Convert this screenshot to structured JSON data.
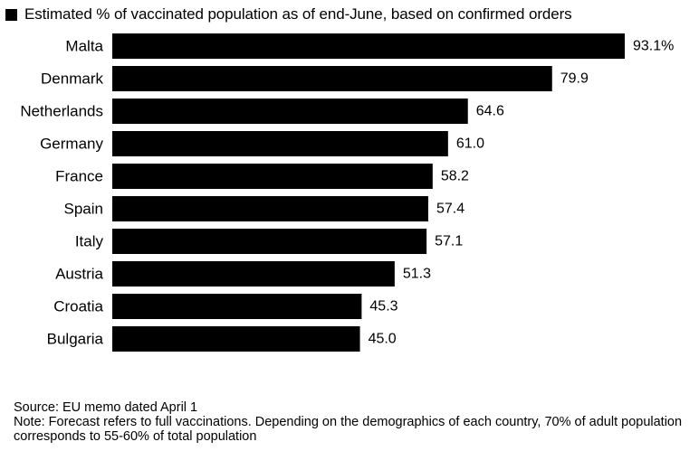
{
  "chart_data": {
    "type": "bar",
    "orientation": "horizontal",
    "legend": {
      "label": "Estimated % of vaccinated population as of end-June, based on confirmed orders",
      "color": "#000000"
    },
    "categories": [
      "Malta",
      "Denmark",
      "Netherlands",
      "Germany",
      "France",
      "Spain",
      "Italy",
      "Austria",
      "Croatia",
      "Bulgaria"
    ],
    "values": [
      93.1,
      79.9,
      64.6,
      61.0,
      58.2,
      57.4,
      57.1,
      51.3,
      45.3,
      45.0
    ],
    "value_labels": [
      "93.1%",
      "79.9",
      "64.6",
      "61.0",
      "58.2",
      "57.4",
      "57.1",
      "51.3",
      "45.3",
      "45.0"
    ],
    "xlim": [
      0,
      93.1
    ],
    "bar_color": "#000000",
    "grid": false
  },
  "footer": {
    "source": "Source: EU memo dated April 1",
    "note": "Note: Forecast refers to full vaccinations. Depending on the demographics of each country, 70% of adult population corresponds to 55-60% of total population"
  }
}
